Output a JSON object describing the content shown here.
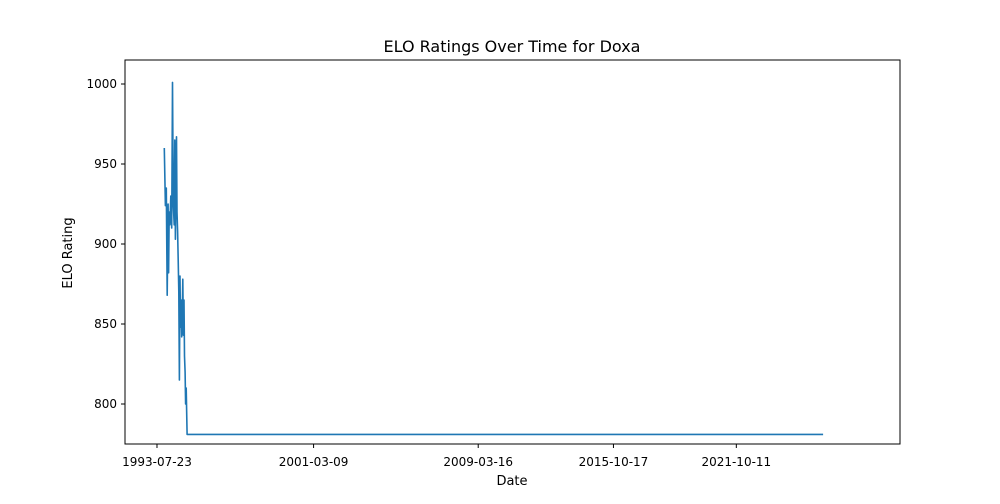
{
  "chart_data": {
    "type": "line",
    "title": "ELO Ratings Over Time for Doxa",
    "xlabel": "Date",
    "ylabel": "ELO Rating",
    "x_ticks": [
      "1993-07-23",
      "2001-03-09",
      "2009-03-16",
      "2015-10-17",
      "2021-10-11"
    ],
    "y_ticks": [
      800,
      850,
      900,
      950,
      1000
    ],
    "xlim": [
      "1992-01-01",
      "2029-10-01"
    ],
    "ylim": [
      775,
      1015
    ],
    "grid": false,
    "legend": "none",
    "colors": {
      "line": "#1f77b4"
    },
    "series": [
      {
        "x": [
          "1993-12-01",
          "1993-12-20",
          "1994-01-05",
          "1994-01-20",
          "1994-02-05",
          "1994-02-15",
          "1994-02-25",
          "1994-03-10",
          "1994-03-25",
          "1994-04-10",
          "1994-04-25",
          "1994-05-10",
          "1994-05-25",
          "1994-06-05",
          "1994-06-15",
          "1994-06-25",
          "1994-07-05",
          "1994-07-15",
          "1994-07-25",
          "1994-08-05",
          "1994-08-15",
          "1994-08-25",
          "1994-09-05",
          "1994-09-15",
          "1994-09-25",
          "1994-10-05",
          "1994-10-15",
          "1994-10-25",
          "1994-11-05",
          "1994-11-15",
          "1994-11-25",
          "1994-12-05",
          "1994-12-15",
          "1994-12-25",
          "1995-01-10",
          "1995-01-25",
          "1995-02-10",
          "1995-02-25",
          "1995-03-10",
          "1995-03-25",
          "1995-04-05",
          "1995-04-20",
          "1995-05-05",
          "1995-05-20",
          "1995-06-05",
          "1995-06-20",
          "2026-01-01"
        ],
        "y": [
          960,
          924,
          935,
          868,
          925,
          882,
          920,
          912,
          930,
          910,
          1001,
          925,
          912,
          965,
          903,
          935,
          967,
          920,
          908,
          890,
          870,
          815,
          880,
          848,
          865,
          842,
          855,
          878,
          843,
          865,
          830,
          820,
          800,
          810,
          781,
          781,
          781,
          781,
          781,
          781,
          781,
          781,
          781,
          781,
          781,
          781,
          781
        ]
      }
    ]
  }
}
